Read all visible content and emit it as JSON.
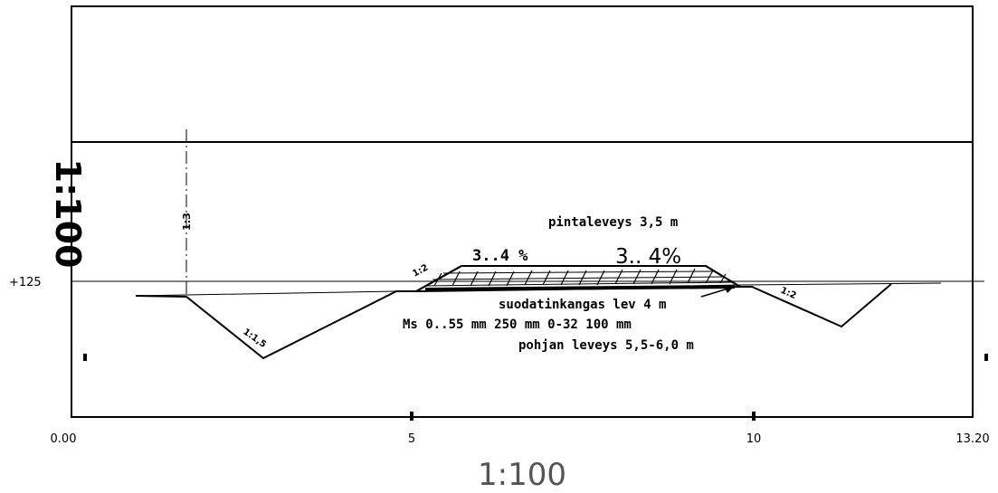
{
  "scale": {
    "vertical": "1:100",
    "horizontal": "1:100"
  },
  "elevation": {
    "label": "+125"
  },
  "stations": {
    "start": "0.00",
    "mid1": "5",
    "mid2": "10",
    "end": "13.20"
  },
  "annotations": {
    "surface_width": "pintaleveys 3,5 m",
    "slope_left": "3..4 %",
    "slope_right": "3.. 4%",
    "filter_fabric": "suodatinkangas lev 4 m",
    "layers": "Ms 0..55 mm 250 mm  0-32 100 mm",
    "bottom_width": "pohjan leveys 5,5-6,0 m",
    "ditch_slope_left": "1:1,5",
    "embankment_slope_left": "1:2",
    "ditch_slope_right": "1:2",
    "centerline_marker": "1:3"
  },
  "colors": {
    "line": "#000000",
    "scale_text_light": "#555555"
  }
}
